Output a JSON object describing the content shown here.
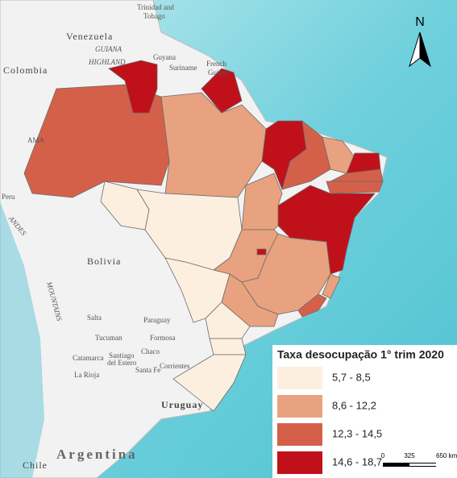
{
  "legend": {
    "title": "Taxa desocupação 1° trim 2020",
    "items": [
      {
        "label": "5,7 - 8,5",
        "color": "#fdefe0"
      },
      {
        "label": "8,6 - 12,2",
        "color": "#e8a27f"
      },
      {
        "label": "12,3 - 14,5",
        "color": "#d4604a"
      },
      {
        "label": "14,6 - 18,7",
        "color": "#c0111a"
      }
    ]
  },
  "north_arrow": "N",
  "scale_bar": {
    "ticks": [
      0,
      325,
      {
        "value": 650,
        "label": "650 km"
      }
    ]
  },
  "place_labels": [
    "Trinidad and",
    "Tobago",
    "Venezuela",
    "GUIANA",
    "HIGHLAND",
    "Guyana",
    "Suriname",
    "French",
    "Guiana",
    "Colombia",
    "AMA",
    "Peru",
    "ANDES",
    "Bolivia",
    "MOUNTAINS",
    "Paraguay",
    "Formosa",
    "Chaco",
    "Santiago",
    "del Estero",
    "Santa Fe",
    "Corrientes",
    "Salta",
    "Tucuman",
    "Catamarca",
    "La Rioja",
    "Uruguay",
    "Argentina",
    "Chile"
  ]
}
